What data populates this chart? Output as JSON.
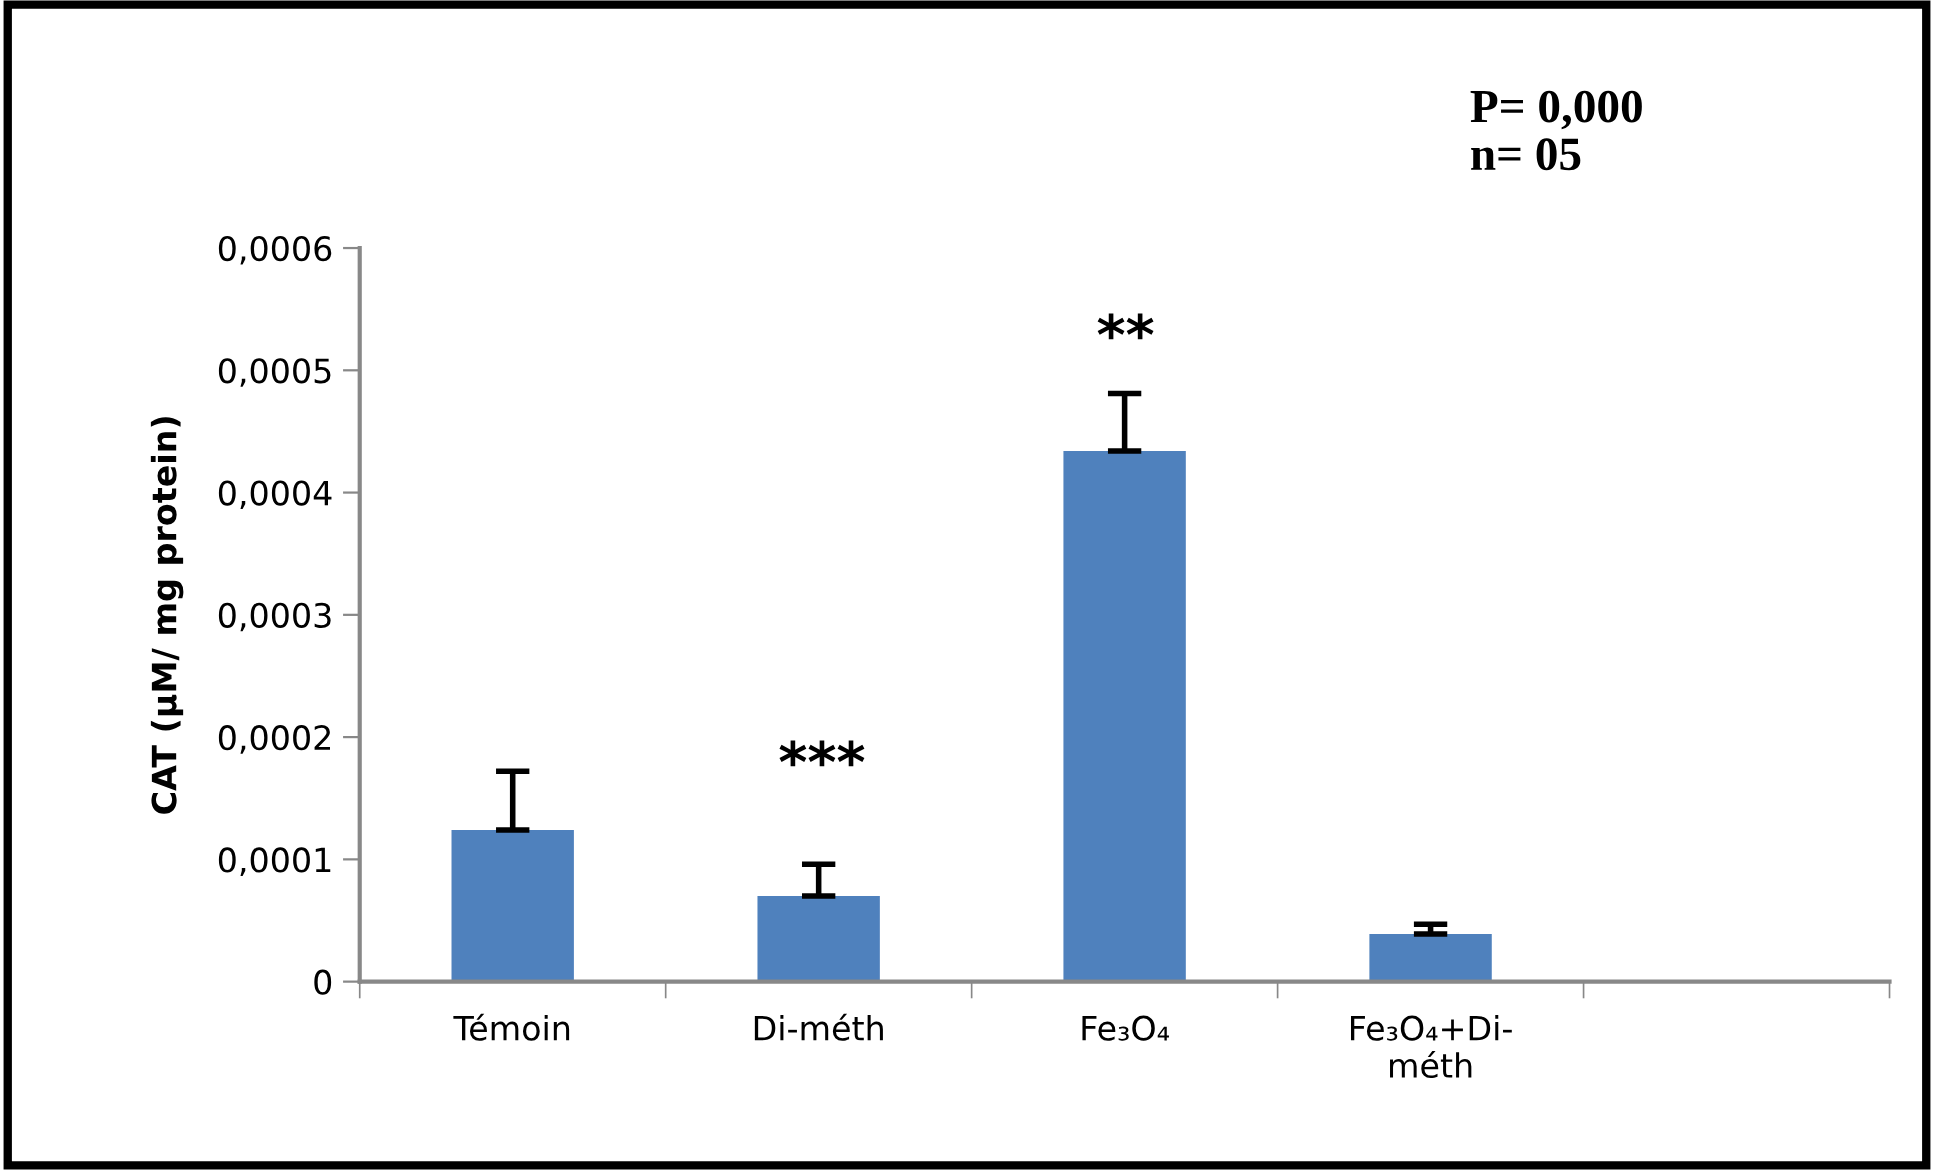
{
  "chart_data": {
    "type": "bar",
    "ylabel": "CAT (µM/ mg protein)",
    "categories": [
      "Témoin",
      "Di-méth",
      "Fe₃O₄",
      "Fe₃O₄+Di-\nméth",
      null
    ],
    "values": [
      0.000124,
      7e-05,
      0.000434,
      3.9e-05,
      null
    ],
    "errors": [
      [
        0.000124,
        0.000172
      ],
      [
        7e-05,
        9.6e-05
      ],
      [
        0.000434,
        0.000481
      ],
      [
        3.9e-05,
        4.7e-05
      ],
      null
    ],
    "color": "#4f81bd",
    "ylim": [
      0,
      0.0006
    ],
    "yticks": [
      {
        "value": 0,
        "label": "0"
      },
      {
        "value": 0.0001,
        "label": "0,0001"
      },
      {
        "value": 0.0002,
        "label": "0,0002"
      },
      {
        "value": 0.0003,
        "label": "0,0003"
      },
      {
        "value": 0.0004,
        "label": "0,0004"
      },
      {
        "value": 0.0005,
        "label": "0,0005"
      },
      {
        "value": 0.0006,
        "label": "0,0006"
      }
    ],
    "grid": false,
    "legend": false,
    "annotations": [
      "***",
      "**",
      "P= 0,000",
      "n= 05"
    ]
  }
}
